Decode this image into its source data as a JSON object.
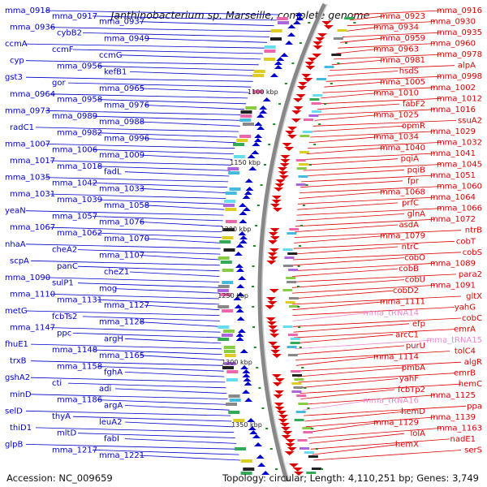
{
  "title": "Janthinobacterium sp. Marseille, complete genome",
  "footer": {
    "accession": "Accession: NC_009659",
    "topology": "Topology: circular; Length: 4,110,251 bp; Genes: 3,749"
  },
  "colors": {
    "forward_strand": "#0000cc",
    "reverse_strand": "#dd0000",
    "rna": "#ee88cc",
    "backbone": "#888888",
    "tick": "#228822"
  },
  "kbp_marks": [
    "1100 kbp",
    "1150 kbp",
    "1200 kbp",
    "1250 kbp",
    "1300 kbp",
    "1350 kbp"
  ],
  "left_labels": [
    "mma_0918",
    "mma_0917",
    "mma_0937",
    "mma_0936",
    "cybB2",
    "mma_0949",
    "ccmA",
    "ccmF",
    "ccmG",
    "cyp",
    "mma_0956",
    "kefB1",
    "gst3",
    "gor",
    "mma_0965",
    "mma_0964",
    "mma_0958",
    "mma_0976",
    "mma_0973",
    "mma_0989",
    "mma_0988",
    "radC1",
    "mma_0982",
    "mma_0996",
    "mma_1007",
    "mma_1006",
    "mma_1009",
    "mma_1017",
    "mma_1018",
    "fadL",
    "mma_1035",
    "mma_1042",
    "mma_1033",
    "mma_1031",
    "mma_1039",
    "mma_1058",
    "yeaN",
    "mma_1057",
    "mma_1076",
    "mma_1067",
    "mma_1062",
    "mma_1070",
    "nhaA",
    "cheA2",
    "mma_1107",
    "scpA",
    "panC",
    "cheZ1",
    "mma_1090",
    "sulP1",
    "mog",
    "mma_1110",
    "mma_1131",
    "mma_1127",
    "metG",
    "fcbTs2",
    "mma_1128",
    "mma_1147",
    "ppc",
    "argH",
    "fhuE1",
    "mma_1148",
    "mma_1165",
    "trxB",
    "mma_1158",
    "fghA",
    "gshA2",
    "cti",
    "adi",
    "minD",
    "mma_1186",
    "argA",
    "selD",
    "thyA",
    "leuA2",
    "thiD1",
    "mltD",
    "fabI",
    "glpB",
    "mma_1217",
    "mma_1221"
  ],
  "right_labels": [
    "mma_0916",
    "mma_0923",
    "mma_0930",
    "mma_0934",
    "mma_0935",
    "mma_0959",
    "mma_0960",
    "mma_0963",
    "mma_0978",
    "mma_0981",
    "alpA",
    "hsdS",
    "mma_0998",
    "mma_1005",
    "mma_1002",
    "mma_1010",
    "mma_1012",
    "fabF2",
    "mma_1016",
    "mma_1025",
    "ssuA2",
    "opmR",
    "mma_1029",
    "mma_1034",
    "mma_1032",
    "mma_1040",
    "mma_1041",
    "pqiA",
    "mma_1045",
    "pqiB",
    "mma_1051",
    "fpr",
    "mma_1060",
    "mma_1068",
    "mma_1064",
    "prfC",
    "mma_1066",
    "glnA",
    "mma_1072",
    "asdA",
    "ntrB",
    "mma_1079",
    "cobT",
    "ntrC",
    "cobS",
    "cobO",
    "mma_1089",
    "cobB",
    "para2",
    "cobU",
    "mma_1091",
    "cobD2",
    "gltX",
    "mma_1111",
    "yahG",
    "mma_tRNA14",
    "cobC",
    "efp",
    "emrA",
    "arcC1",
    "mma_tRNA15",
    "purU",
    "tolC4",
    "mma_1114",
    "algR",
    "pmbA",
    "emrB",
    "yahF",
    "hemC",
    "fcbTp2",
    "mma_1125",
    "mma_tRNA16",
    "ppa",
    "hemD",
    "mma_1139",
    "mma_1129",
    "mma_1163",
    "lolA",
    "nadE1",
    "hemX",
    "serS"
  ],
  "rna_labels": [
    "mma_tRNA14",
    "mma_tRNA15",
    "mma_tRNA16"
  ]
}
